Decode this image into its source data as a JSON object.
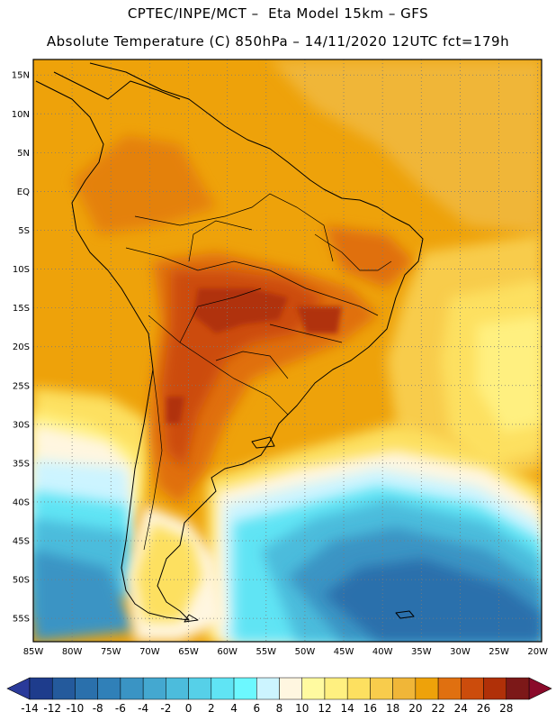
{
  "header": {
    "line1": "CPTEC/INPE/MCT –  Eta Model 15km – GFS",
    "line2": "Absolute Temperature (C) 850hPa – 14/11/2020 12UTC fct=179h"
  },
  "map": {
    "lat_labels": [
      "15N",
      "10N",
      "5N",
      "EQ",
      "5S",
      "10S",
      "15S",
      "20S",
      "25S",
      "30S",
      "35S",
      "40S",
      "45S",
      "50S",
      "55S"
    ],
    "lat_values": [
      15,
      10,
      5,
      0,
      -5,
      -10,
      -15,
      -20,
      -25,
      -30,
      -35,
      -40,
      -45,
      -50,
      -55
    ],
    "lon_labels": [
      "85W",
      "80W",
      "75W",
      "70W",
      "65W",
      "60W",
      "55W",
      "50W",
      "45W",
      "40W",
      "35W",
      "30W",
      "25W",
      "20W"
    ],
    "lon_values": [
      -85,
      -80,
      -75,
      -70,
      -65,
      -60,
      -55,
      -50,
      -45,
      -40,
      -35,
      -30,
      -25,
      -20
    ],
    "extent": {
      "lon_min": -85,
      "lon_max": -19.5,
      "lat_max": 17,
      "lat_min": -58
    }
  },
  "colorbar": {
    "labels": [
      "-14",
      "-12",
      "-10",
      "-8",
      "-6",
      "-4",
      "-2",
      "0",
      "2",
      "4",
      "6",
      "8",
      "10",
      "12",
      "14",
      "16",
      "18",
      "20",
      "22",
      "24",
      "26",
      "28"
    ],
    "colors": [
      "#1e3c8c",
      "#245a9c",
      "#2a70ac",
      "#3080b8",
      "#3a94c4",
      "#44a8d0",
      "#4cbcdc",
      "#56d0e8",
      "#60e4f4",
      "#6cf8ff",
      "#ccf4ff",
      "#fff6e0",
      "#fffaa0",
      "#fff080",
      "#fde060",
      "#f8cc4c",
      "#f0b638",
      "#eea20a",
      "#e07010",
      "#cc4c0c",
      "#b03008",
      "#7c1818"
    ],
    "under_color": "#2a3a9a",
    "over_color": "#8a0a2a"
  }
}
